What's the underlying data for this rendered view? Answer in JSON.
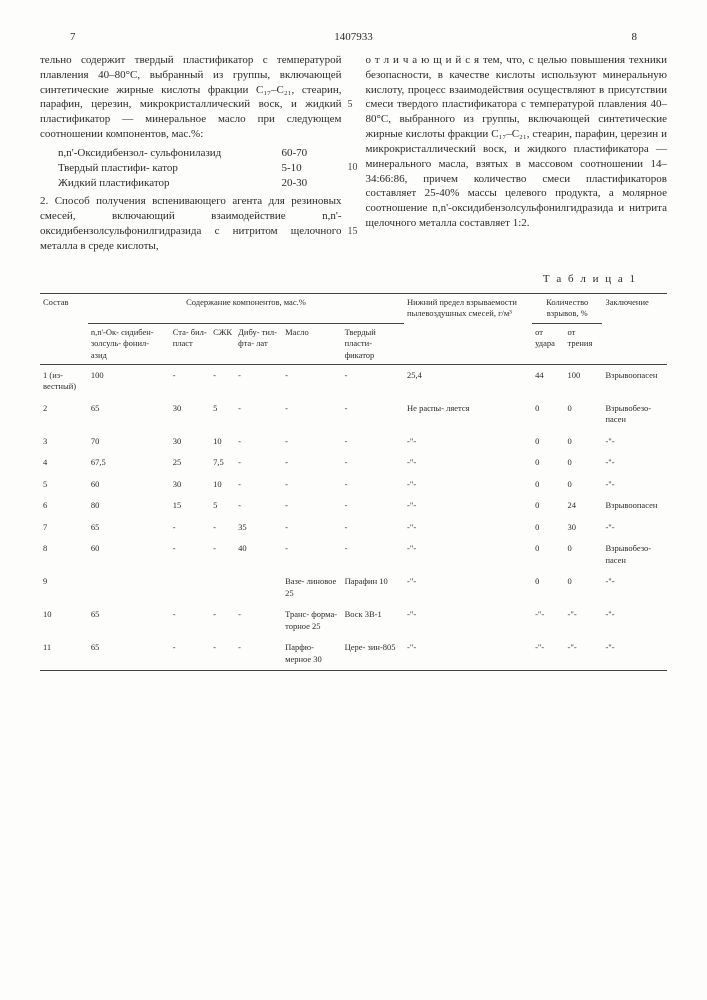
{
  "page": {
    "left_num": "7",
    "doc_num": "1407933",
    "right_num": "8"
  },
  "col_left": {
    "text1": "тельно содержит твердый пластификатор с температурой плавления 40–80°С, выбранный из группы, включающей синтетические жирные кислоты фракции C₁₇–C₂₁, стеарин, парафин, церезин, микрокристаллический воск, и жидкий пластификатор — минеральное масло при следующем соотношении компонентов, мас.%:",
    "components": [
      {
        "lbl": "n,n'-Оксидибензол-\nсульфонилазид",
        "val": "60-70"
      },
      {
        "lbl": "Твердый пластифи-\nкатор",
        "val": "5-10"
      },
      {
        "lbl": "Жидкий пластификатор",
        "val": "20-30"
      }
    ],
    "text2": "2. Способ получения вспенивающего агента для резиновых смесей, включающий взаимодействие n,n'-оксидибензолсульфонилгидразида с нитритом щелочного металла в среде кислоты,"
  },
  "col_right": {
    "marks": {
      "five": "5",
      "ten": "10",
      "fifteen": "15"
    },
    "text": "о т л и ч а ю щ и й с я  тем, что, с целью повышения техники безопасности, в качестве кислоты используют минеральную кислоту, процесс взаимодействия осуществляют в присутствии смеси твердого пластификатора с температурой плавления 40–80°С, выбранного из группы, включающей синтетические жирные кислоты фракции C₁₇–C₂₁, стеарин, парафин, церезин и микрокристаллический воск, и жидкого пластификатора — минерального масла, взятых в массовом соотношении 14–34:66:86, причем количество смеси пластификаторов составляет 25-40% массы целевого продукта, а молярное соотношение n,n'-оксидибензолсульфонилгидразида и нитрита щелочного металла составляет 1:2."
  },
  "table": {
    "label": "Т а б л и ц а  1",
    "head": {
      "sostav": "Состав",
      "content_group": "Содержание компонентов, мас.%",
      "limit": "Нижний предел взрываемости пылевоздушных смесей, г/м³",
      "explos_group": "Количество взрывов, %",
      "concl": "Заключение",
      "c1": "n,n'-Ок-\nсидибен-\nзолсуль-\nфонил-\nазид",
      "c2": "Ста-\nбил-\nпласт",
      "c3": "СЖК",
      "c4": "Дибу-\nтил-\nфта-\nлат",
      "c5": "Масло",
      "c6": "Твердый\nпласти-\nфикатор",
      "e1": "от\nудара",
      "e2": "от\nтрения"
    },
    "rows": [
      {
        "n": "1 (из-\nвестный)",
        "a": "100",
        "b": "-",
        "c": "-",
        "d": "-",
        "e": "-",
        "f": "-",
        "g": "25,4",
        "h": "44",
        "i": "100",
        "j": "Взрывоопасен"
      },
      {
        "n": "2",
        "a": "65",
        "b": "30",
        "c": "5",
        "d": "-",
        "e": "-",
        "f": "-",
        "g": "Не распы-\nляется",
        "h": "0",
        "i": "0",
        "j": "Взрывобезо-\nпасен"
      },
      {
        "n": "3",
        "a": "70",
        "b": "30",
        "c": "10",
        "d": "-",
        "e": "-",
        "f": "-",
        "g": "-\"-",
        "h": "0",
        "i": "0",
        "j": "-\"-"
      },
      {
        "n": "4",
        "a": "67,5",
        "b": "25",
        "c": "7,5",
        "d": "-",
        "e": "-",
        "f": "-",
        "g": "-\"-",
        "h": "0",
        "i": "0",
        "j": "-\"-"
      },
      {
        "n": "5",
        "a": "60",
        "b": "30",
        "c": "10",
        "d": "-",
        "e": "-",
        "f": "-",
        "g": "-\"-",
        "h": "0",
        "i": "0",
        "j": "-\"-"
      },
      {
        "n": "6",
        "a": "80",
        "b": "15",
        "c": "5",
        "d": "-",
        "e": "-",
        "f": "-",
        "g": "-\"-",
        "h": "0",
        "i": "24",
        "j": "Взрывоопасен"
      },
      {
        "n": "7",
        "a": "65",
        "b": "-",
        "c": "-",
        "d": "35",
        "e": "-",
        "f": "-",
        "g": "-\"-",
        "h": "0",
        "i": "30",
        "j": "-\"-"
      },
      {
        "n": "8",
        "a": "60",
        "b": "-",
        "c": "-",
        "d": "40",
        "e": "-",
        "f": "-",
        "g": "-\"-",
        "h": "0",
        "i": "0",
        "j": "Взрывобезо-\nпасен"
      },
      {
        "n": "9",
        "a": "",
        "b": "",
        "c": "",
        "d": "",
        "e": "Вазе-\nлиновое\n25",
        "f": "Парафин\n10",
        "g": "-\"-",
        "h": "0",
        "i": "0",
        "j": "-\"-"
      },
      {
        "n": "10",
        "a": "65",
        "b": "-",
        "c": "-",
        "d": "-",
        "e": "Транс-\nформа-\nторное\n25",
        "f": "Воск\n3В-1",
        "g": "-\"-",
        "h": "-\"-",
        "i": "-\"-",
        "j": "-\"-"
      },
      {
        "n": "11",
        "a": "65",
        "b": "-",
        "c": "-",
        "d": "-",
        "e": "Парфю-\nмерное\n30",
        "f": "Цере-\nзин-805",
        "g": "-\"-",
        "h": "-\"-",
        "i": "-\"-",
        "j": "-\"-"
      }
    ]
  }
}
